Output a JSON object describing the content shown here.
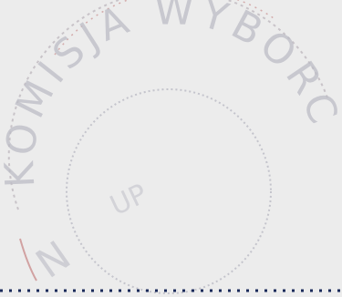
{
  "seal": {
    "arc_text": "KOMISJA WYBORC",
    "center_text": "UP",
    "bottom_fragment": "N",
    "ink_color": "#b8b8c2",
    "accent_color": "#c07070",
    "dot_color": "#1a2a5a",
    "paper_color": "#ececec"
  }
}
